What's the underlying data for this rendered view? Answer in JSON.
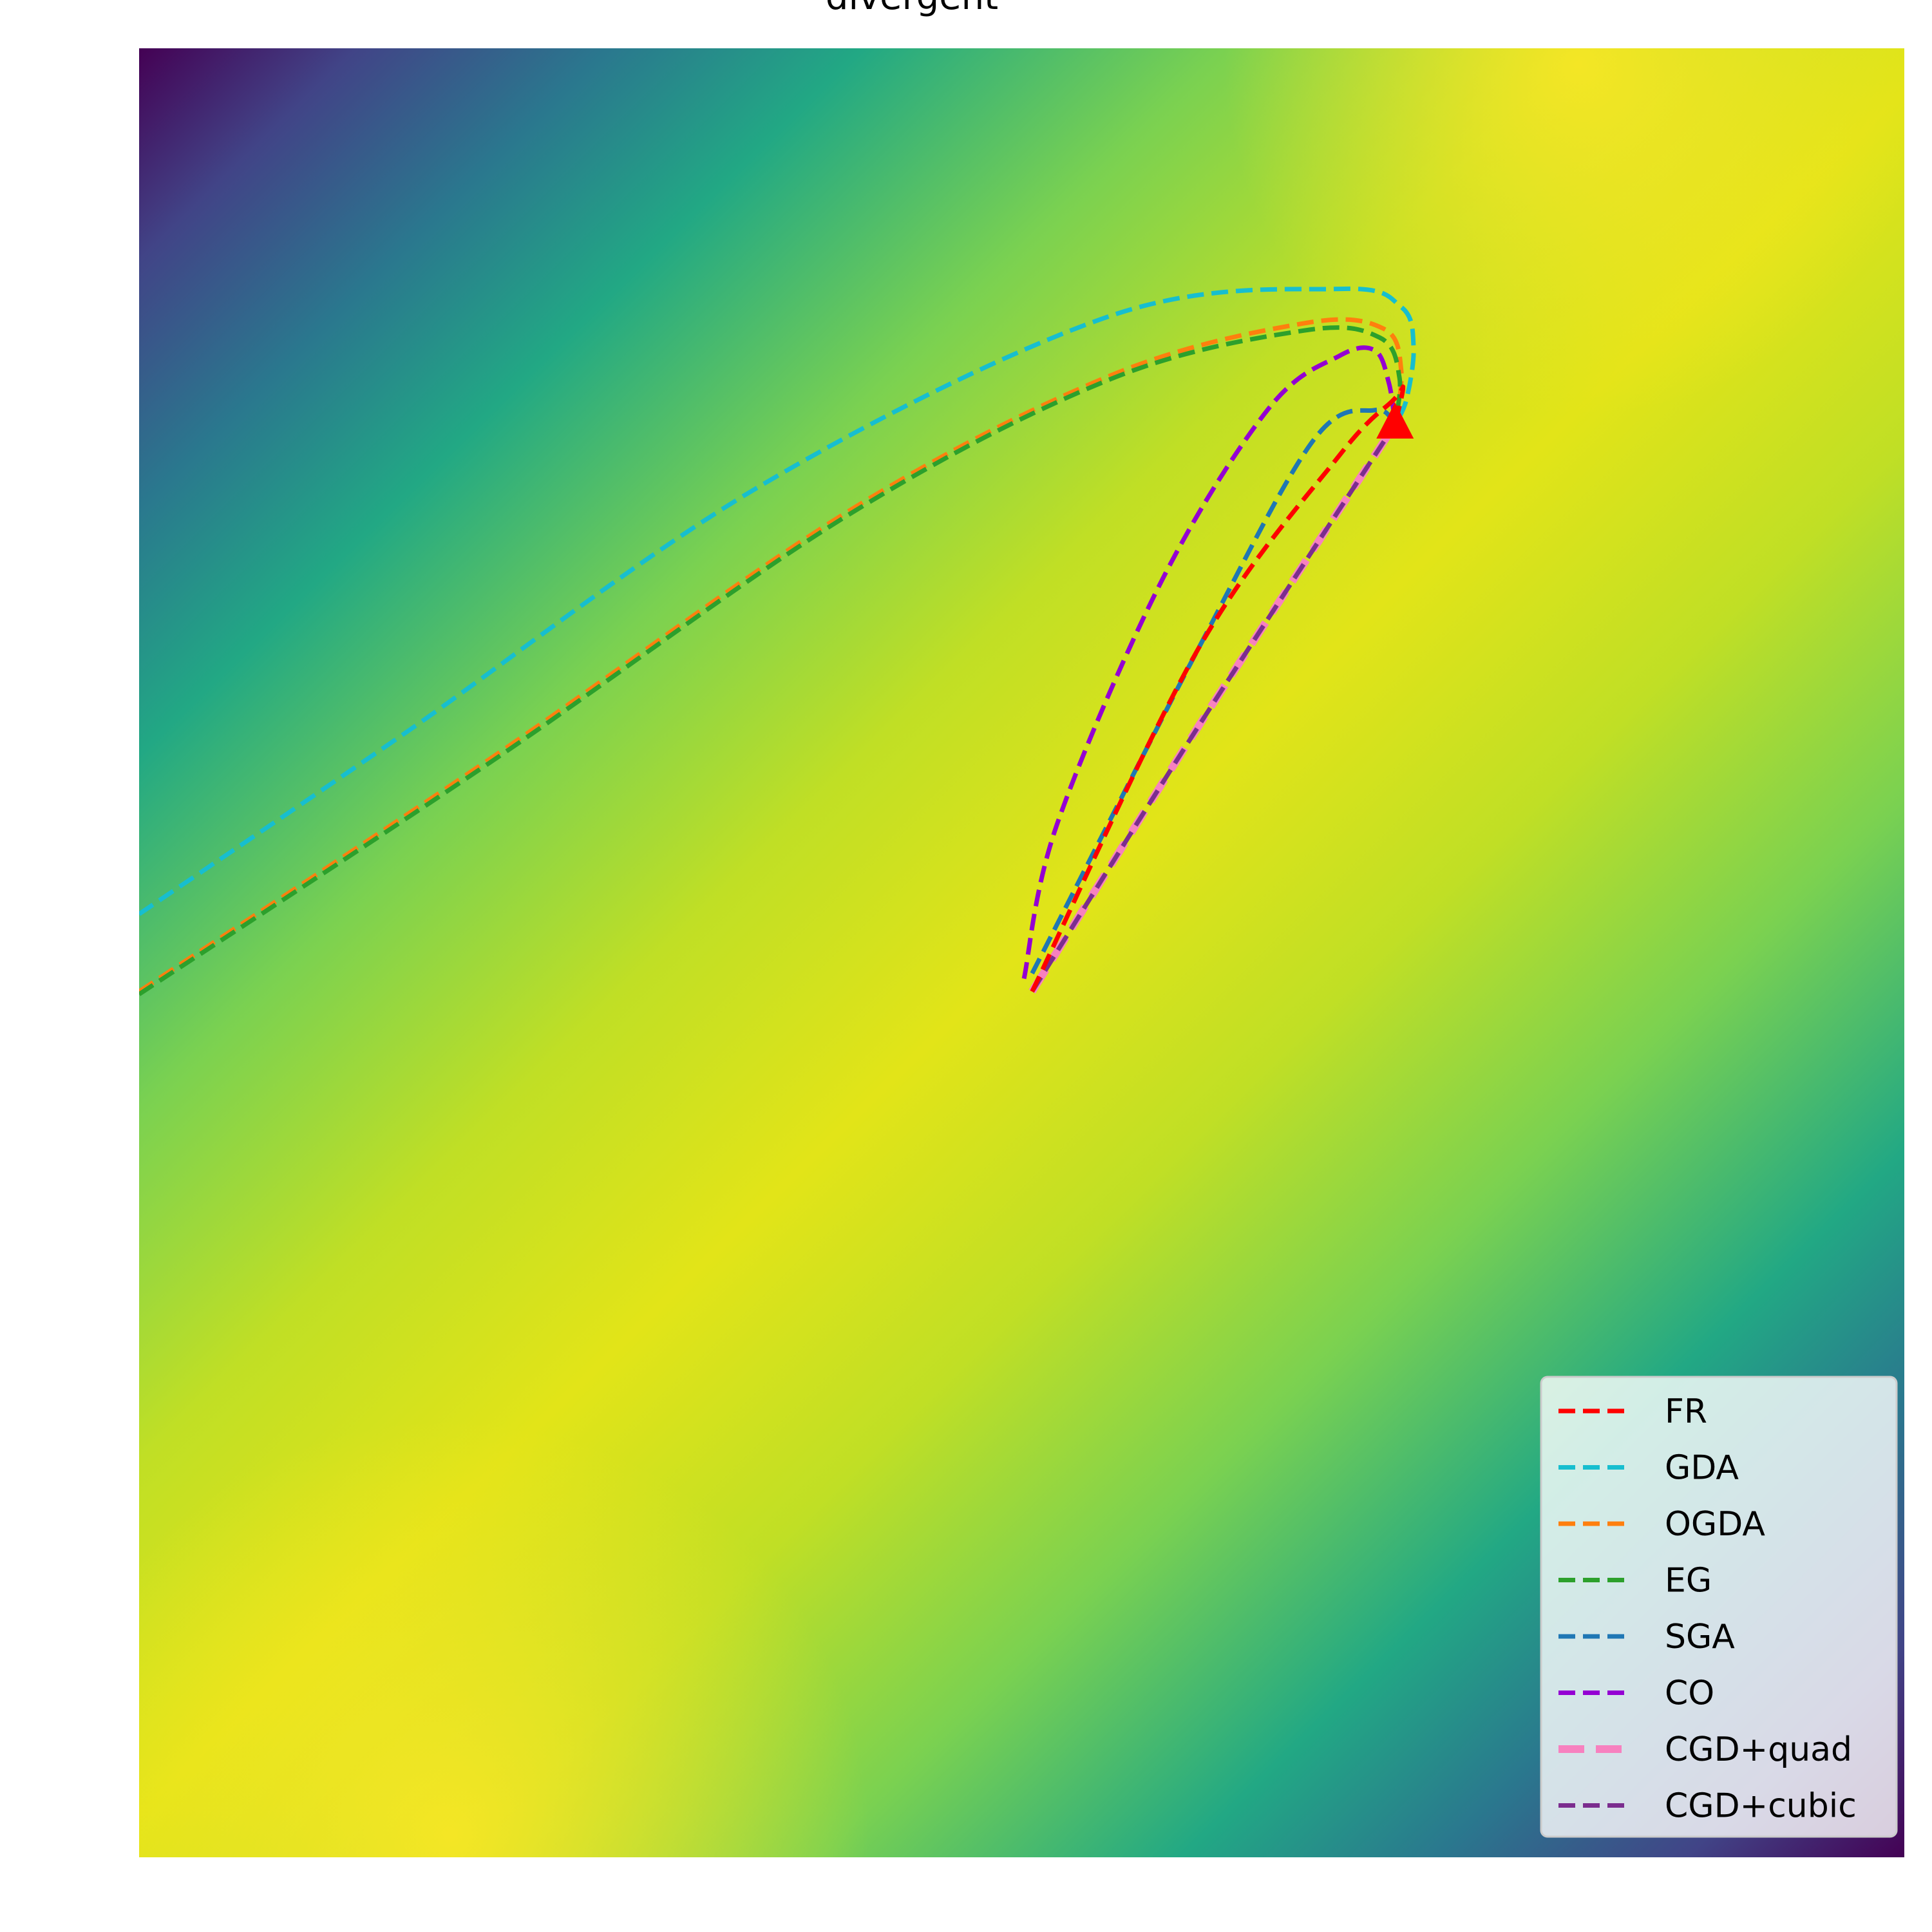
{
  "chart_data": {
    "type": "line",
    "title": "divergent",
    "xlabel": "",
    "ylabel": "",
    "xlim": [
      0,
      1
    ],
    "ylim": [
      0,
      1
    ],
    "grid": false,
    "background": "contour",
    "colormap": "viridis",
    "legend_position": "bottom-right",
    "start_marker": {
      "x": 0.5059,
      "y": 0.4786
    },
    "end_marker": {
      "shape": "triangle",
      "color": "#ff0000",
      "x": 0.7115,
      "y": 0.7921
    },
    "series": [
      {
        "name": "FR",
        "color": "#ff0000",
        "x": [
          0.5059,
          0.6,
          0.68,
          0.711,
          0.716,
          0.7115
        ],
        "y": [
          0.4786,
          0.668,
          0.775,
          0.806,
          0.812,
          0.7921
        ]
      },
      {
        "name": "GDA",
        "color": "#17becf",
        "x": [
          0.0,
          0.15,
          0.35,
          0.55,
          0.68,
          0.715,
          0.722,
          0.718,
          0.7115
        ],
        "y": [
          0.5214,
          0.621,
          0.757,
          0.852,
          0.867,
          0.857,
          0.835,
          0.806,
          0.7921
        ]
      },
      {
        "name": "OGDA",
        "color": "#ff7f0e",
        "x": [
          0.0,
          0.2,
          0.4,
          0.55,
          0.66,
          0.705,
          0.715,
          0.7115
        ],
        "y": [
          0.4786,
          0.608,
          0.743,
          0.819,
          0.848,
          0.845,
          0.822,
          0.7921
        ]
      },
      {
        "name": "EG",
        "color": "#2ca02c",
        "x": [
          0.0,
          0.2,
          0.4,
          0.55,
          0.66,
          0.703,
          0.714,
          0.7115
        ],
        "y": [
          0.4771,
          0.606,
          0.741,
          0.817,
          0.844,
          0.84,
          0.818,
          0.7921
        ]
      },
      {
        "name": "SGA",
        "color": "#1f77b4",
        "x": [
          0.5059,
          0.6,
          0.665,
          0.7,
          0.7115
        ],
        "y": [
          0.4886,
          0.668,
          0.783,
          0.8,
          0.7921
        ]
      },
      {
        "name": "CO",
        "color": "#9400d3",
        "x": [
          0.5013,
          0.52,
          0.58,
          0.64,
          0.68,
          0.7,
          0.708,
          0.7115
        ],
        "y": [
          0.4857,
          0.571,
          0.707,
          0.801,
          0.83,
          0.833,
          0.815,
          0.7921
        ]
      },
      {
        "name": "CGD+quad",
        "color": "#f781bf",
        "x": [
          0.5059,
          0.6,
          0.7115
        ],
        "y": [
          0.4786,
          0.625,
          0.7921
        ]
      },
      {
        "name": "CGD+cubic",
        "color": "#7b2d8e",
        "x": [
          0.5059,
          0.6,
          0.7115
        ],
        "y": [
          0.4786,
          0.625,
          0.7921
        ]
      }
    ]
  }
}
